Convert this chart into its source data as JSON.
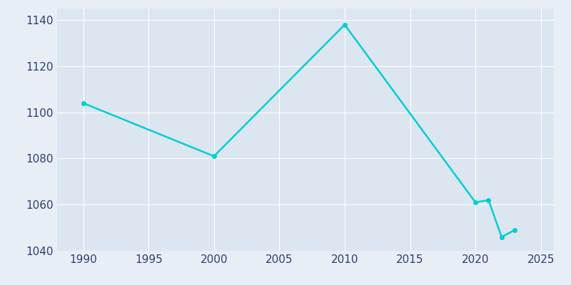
{
  "years": [
    1990,
    2000,
    2010,
    2020,
    2021,
    2022,
    2023
  ],
  "population": [
    1104,
    1081,
    1138,
    1061,
    1062,
    1046,
    1049
  ],
  "line_color": "#00CED1",
  "plot_bg_color": "#dce6f0",
  "fig_bg_color": "#e8eef5",
  "grid_color": "#ffffff",
  "text_color": "#2d3f6e",
  "xlim": [
    1988,
    2026
  ],
  "ylim": [
    1040,
    1145
  ],
  "xticks": [
    1990,
    1995,
    2000,
    2005,
    2010,
    2015,
    2020,
    2025
  ],
  "yticks": [
    1040,
    1060,
    1080,
    1100,
    1120,
    1140
  ],
  "line_width": 1.8,
  "marker": "o",
  "marker_size": 4,
  "figsize": [
    8.0,
    4.0
  ],
  "dpi": 100
}
